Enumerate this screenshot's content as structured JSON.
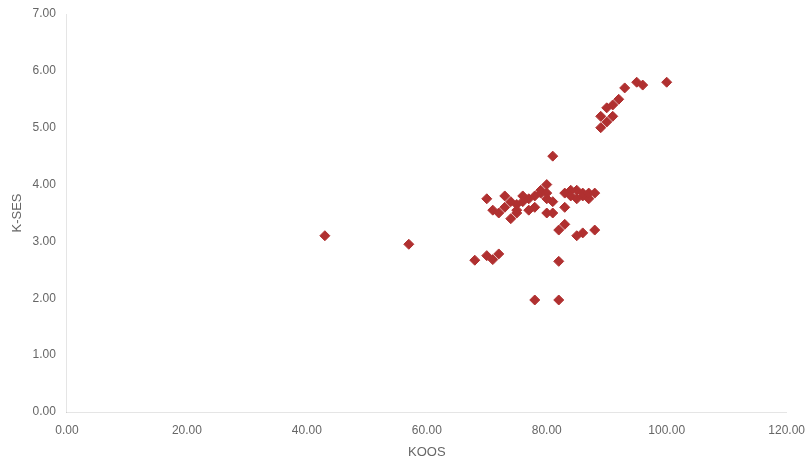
{
  "chart_data": {
    "type": "scatter",
    "x": [
      43,
      57,
      68,
      70,
      70,
      71,
      71,
      72,
      72,
      73,
      73,
      74,
      74,
      75,
      75,
      75,
      76,
      76,
      77,
      77,
      78,
      78,
      78,
      79,
      79,
      80,
      80,
      80,
      80,
      81,
      81,
      81,
      82,
      82,
      82,
      83,
      83,
      83,
      84,
      84,
      85,
      85,
      85,
      86,
      86,
      86,
      87,
      87,
      88,
      88,
      89,
      89,
      90,
      90,
      91,
      91,
      92,
      93,
      95,
      96,
      100
    ],
    "values": [
      3.1,
      2.95,
      2.67,
      2.75,
      3.75,
      2.68,
      3.55,
      2.78,
      3.5,
      3.6,
      3.8,
      3.4,
      3.7,
      3.5,
      3.65,
      3.55,
      3.8,
      3.7,
      3.75,
      3.55,
      1.97,
      3.6,
      3.8,
      3.85,
      3.9,
      3.5,
      3.75,
      3.85,
      4.0,
      3.5,
      3.7,
      4.5,
      1.97,
      2.65,
      3.2,
      3.3,
      3.6,
      3.85,
      3.9,
      3.8,
      3.1,
      3.75,
      3.9,
      3.15,
      3.8,
      3.85,
      3.75,
      3.85,
      3.2,
      3.85,
      5.0,
      5.2,
      5.1,
      5.35,
      5.2,
      5.4,
      5.5,
      5.7,
      5.8,
      5.75,
      5.8
    ],
    "color": "#b03030",
    "marker": "diamond",
    "xlabel": "KOOS",
    "ylabel": "K-SES",
    "xlim": [
      0,
      120
    ],
    "ylim": [
      0,
      7
    ],
    "xticks": [
      {
        "value": 0,
        "label": "0.00"
      },
      {
        "value": 20,
        "label": "20.00"
      },
      {
        "value": 40,
        "label": "40.00"
      },
      {
        "value": 60,
        "label": "60.00"
      },
      {
        "value": 80,
        "label": "80.00"
      },
      {
        "value": 100,
        "label": "100.00"
      },
      {
        "value": 120,
        "label": "120.00"
      }
    ],
    "yticks": [
      {
        "value": 0,
        "label": "0.00"
      },
      {
        "value": 1,
        "label": "1.00"
      },
      {
        "value": 2,
        "label": "2.00"
      },
      {
        "value": 3,
        "label": "3.00"
      },
      {
        "value": 4,
        "label": "4.00"
      },
      {
        "value": 5,
        "label": "5.00"
      },
      {
        "value": 6,
        "label": "6.00"
      },
      {
        "value": 7,
        "label": "7.00"
      }
    ],
    "grid": false
  }
}
